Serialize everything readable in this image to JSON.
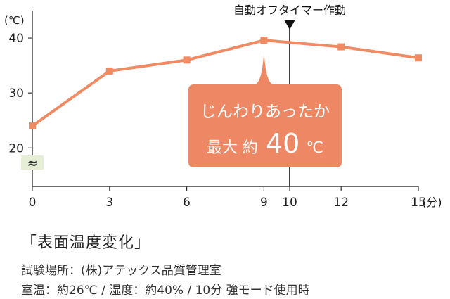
{
  "chart_data": {
    "type": "line",
    "title": "「表面温度変化」",
    "ylabel": "(℃)",
    "x_ticks": [
      "0",
      "3",
      "6",
      "9",
      "10",
      "12",
      "15"
    ],
    "x_unit_label": "(分)",
    "y_ticks": [
      "20",
      "30",
      "40"
    ],
    "ylim": [
      13,
      45
    ],
    "xlim": [
      0,
      15
    ],
    "axis_break": true,
    "axis_break_symbol": "≈",
    "series": [
      {
        "x": [
          0,
          3,
          6,
          9,
          12,
          15
        ],
        "y": [
          24,
          34,
          36,
          39.6,
          38.4,
          36.4
        ]
      }
    ],
    "annotations": {
      "marker_x": 10,
      "marker_label": "自動オフタイマー作動",
      "callout_line1": "じんわりあったか",
      "callout_prefix": "最大 約",
      "callout_value": "40",
      "callout_unit": "℃"
    },
    "colors": {
      "series": "#ef8a63",
      "callout_bg": "#ee8764",
      "axis": "#3a3a3a",
      "break_bg": "#e6efd6",
      "text": "#222222"
    }
  },
  "captions": {
    "line1": "試験場所：(株)アテックス品質管理室",
    "line2": "室温：約26℃ / 湿度：約40% / 10分 強モード使用時"
  }
}
